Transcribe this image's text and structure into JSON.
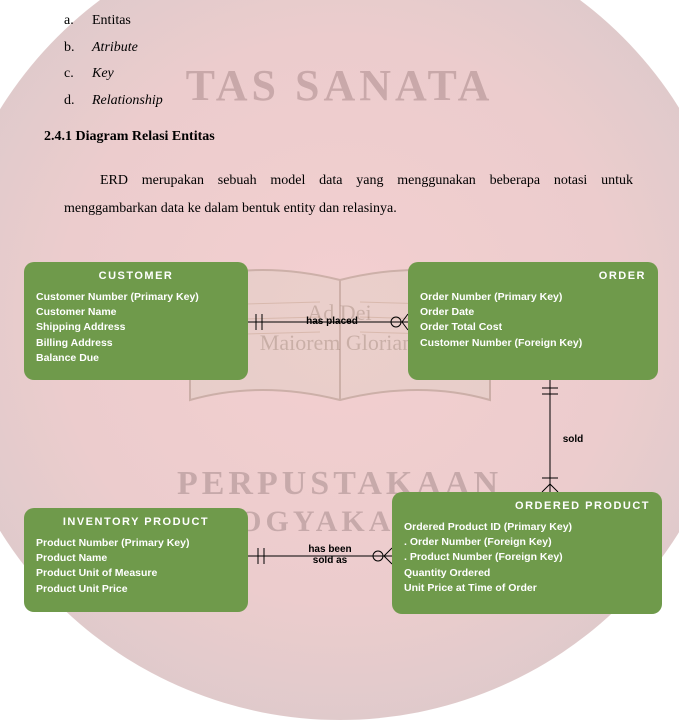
{
  "list": {
    "a_marker": "a.",
    "a_text": "Entitas",
    "b_marker": "b.",
    "b_text": "Atribute",
    "c_marker": "c.",
    "c_text": "Key",
    "d_marker": "d.",
    "d_text": "Relationship"
  },
  "heading": "2.4.1 Diagram Relasi Entitas",
  "paragraph": "ERD merupakan sebuah model data yang menggunakan beberapa notasi untuk menggambarkan data ke dalam bentuk entity dan relasinya.",
  "watermark": {
    "top": "TAS  SANATA",
    "mid1": "Ad          Dei",
    "mid2": "Maiorem   Gloriam",
    "bot1": "PERPUSTAKAAN",
    "bot2": "YOGYAKARTA"
  },
  "style": {
    "entity_fill": "#6f9a4b",
    "entity_text": "#ffffff",
    "entity_radius": 10,
    "line_color": "#000000",
    "line_width": 1.2,
    "label_font": "Arial",
    "body_font": "Times New Roman"
  },
  "entities": {
    "customer": {
      "title": "CUSTOMER",
      "attrs": [
        "Customer Number (Primary Key)",
        "Customer Name",
        "Shipping Address",
        "Billing Address",
        "Balance Due"
      ]
    },
    "order": {
      "title": "ORDER",
      "attrs": [
        "Order Number (Primary Key)",
        "Order Date",
        "Order Total Cost",
        "Customer Number (Foreign Key)"
      ]
    },
    "inventory": {
      "title": "INVENTORY PRODUCT",
      "attrs": [
        "Product Number (Primary Key)",
        "Product Name",
        "Product Unit of Measure",
        "Product Unit Price"
      ]
    },
    "ordered": {
      "title": "ORDERED PRODUCT",
      "attrs": [
        "Ordered Product ID (Primary Key)",
        ". Order Number (Foreign Key)",
        ". Product Number (Foreign Key)",
        "Quantity Ordered",
        "Unit Price at Time of Order"
      ]
    }
  },
  "relationships": {
    "has_placed": "has placed",
    "sold": "sold",
    "has_been_sold_as": "has been\nsold as"
  }
}
